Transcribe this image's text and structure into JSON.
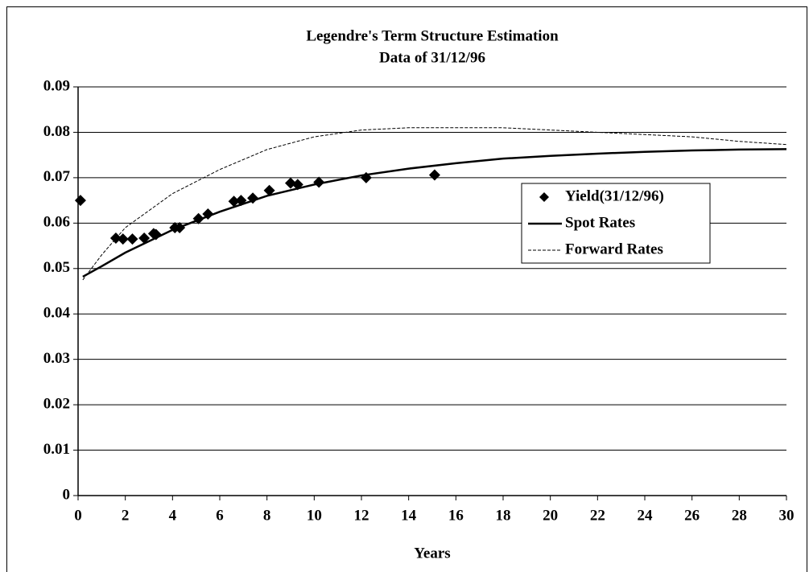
{
  "chart_data": {
    "type": "scatter",
    "title": "Legendre's Term Structure Estimation",
    "subtitle": "Data of 31/12/96",
    "x_label": "Years",
    "xlim": [
      0,
      30
    ],
    "xticks": [
      0,
      2,
      4,
      6,
      8,
      10,
      12,
      14,
      16,
      18,
      20,
      22,
      24,
      26,
      28,
      30
    ],
    "ylim": [
      0,
      0.09
    ],
    "yticks": [
      0,
      0.01,
      0.02,
      0.03,
      0.04,
      0.05,
      0.06,
      0.07,
      0.08,
      0.09
    ],
    "grid": true,
    "legend": "right",
    "series": [
      {
        "name": "Yield(31/12/96)",
        "color": "#000000",
        "style": "marker",
        "x": [
          0.1,
          1.6,
          1.9,
          2.3,
          2.8,
          3.2,
          3.3,
          4.1,
          4.3,
          5.1,
          5.5,
          6.6,
          6.9,
          7.4,
          8.1,
          9.0,
          9.3,
          10.2,
          12.2,
          15.1
        ],
        "values": [
          0.065,
          0.0567,
          0.0565,
          0.0565,
          0.0567,
          0.0577,
          0.0575,
          0.059,
          0.059,
          0.061,
          0.062,
          0.0648,
          0.065,
          0.0655,
          0.0672,
          0.0688,
          0.0685,
          0.069,
          0.07,
          0.0706
        ]
      },
      {
        "name": "Spot Rates",
        "color": "#000000",
        "style": "solid",
        "x": [
          0.2,
          1,
          2,
          4,
          6,
          8,
          10,
          12,
          14,
          16,
          18,
          20,
          22,
          24,
          26,
          28,
          30
        ],
        "values": [
          0.0482,
          0.0505,
          0.0535,
          0.0585,
          0.0625,
          0.066,
          0.0685,
          0.0705,
          0.072,
          0.0732,
          0.0742,
          0.0748,
          0.0753,
          0.0757,
          0.076,
          0.0762,
          0.0763
        ]
      },
      {
        "name": "Forward Rates",
        "color": "#000000",
        "style": "dashed",
        "x": [
          0.2,
          1,
          2,
          4,
          6,
          8,
          10,
          12,
          14,
          16,
          18,
          20,
          22,
          24,
          26,
          28,
          30
        ],
        "values": [
          0.0475,
          0.053,
          0.059,
          0.0665,
          0.0718,
          0.0762,
          0.079,
          0.0805,
          0.081,
          0.081,
          0.081,
          0.0805,
          0.08,
          0.0795,
          0.079,
          0.078,
          0.0773
        ]
      }
    ]
  }
}
